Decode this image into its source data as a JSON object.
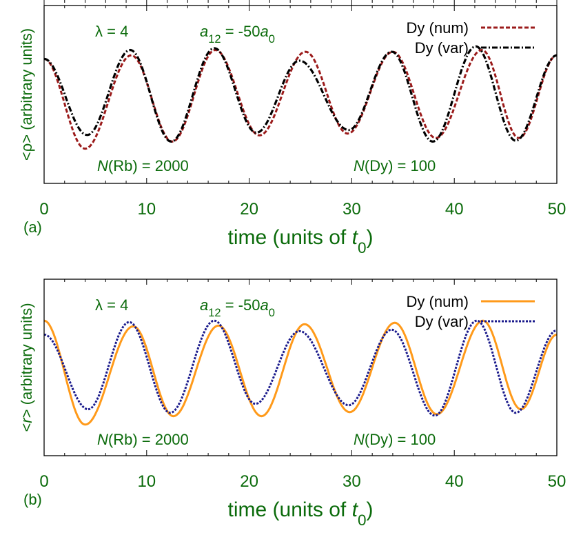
{
  "chart_data": [
    {
      "type": "line",
      "panel_label": "(a)",
      "xlabel": "time (units of t0)",
      "xlabel_parts": {
        "main": "time (units of ",
        "italic": "t",
        "sub": "0",
        "close": ")"
      },
      "ylabel": "<ρ> (arbitrary units)",
      "xlim": [
        0,
        50
      ],
      "xticks": [
        "0",
        "10",
        "20",
        "30",
        "40",
        "50"
      ],
      "ylim": [
        0,
        1
      ],
      "grid": false,
      "legend": "top-right",
      "annotations": {
        "lambda": "λ = 4",
        "a12": {
          "a": "a",
          "sub": "12",
          "mid": " = -50",
          "a0": "a",
          "sub0": "0"
        },
        "nrb": {
          "n": "N",
          "rest": "(Rb) = 2000"
        },
        "ndy": {
          "n": "N",
          "rest": "(Dy) = 100"
        }
      },
      "series": [
        {
          "name": "Dy (num)",
          "color": "#9b1b1b",
          "style": "dashed",
          "key_points": [
            [
              0,
              0.7
            ],
            [
              4,
              0.195
            ],
            [
              8.5,
              0.72
            ],
            [
              12.5,
              0.235
            ],
            [
              16.7,
              0.75
            ],
            [
              21,
              0.27
            ],
            [
              25.5,
              0.74
            ],
            [
              29.6,
              0.28
            ],
            [
              34,
              0.74
            ],
            [
              38.2,
              0.255
            ],
            [
              42.7,
              0.75
            ],
            [
              46.3,
              0.255
            ],
            [
              50,
              0.72
            ]
          ]
        },
        {
          "name": "Dy (var)",
          "color": "#000000",
          "style": "dash-dot",
          "key_points": [
            [
              0,
              0.7
            ],
            [
              4.2,
              0.272
            ],
            [
              8.4,
              0.75
            ],
            [
              12.4,
              0.235
            ],
            [
              16.6,
              0.76
            ],
            [
              20.7,
              0.285
            ],
            [
              24.9,
              0.69
            ],
            [
              29.7,
              0.3
            ],
            [
              33.9,
              0.74
            ],
            [
              37.9,
              0.235
            ],
            [
              42.1,
              0.77
            ],
            [
              46,
              0.24
            ],
            [
              50,
              0.72
            ]
          ]
        }
      ]
    },
    {
      "type": "line",
      "panel_label": "(b)",
      "xlabel": "time (units of t0)",
      "xlabel_parts": {
        "main": "time (units of ",
        "italic": "t",
        "sub": "0",
        "close": ")"
      },
      "ylabel": "<r> (arbitrary units)",
      "ylabel_parts": {
        "open": "<",
        "italic": "r",
        "close": ">",
        "rest": "  (arbitrary units)"
      },
      "xlim": [
        0,
        50
      ],
      "xticks": [
        "0",
        "10",
        "20",
        "30",
        "40",
        "50"
      ],
      "ylim": [
        0,
        1
      ],
      "grid": false,
      "legend": "top-right",
      "annotations": {
        "lambda": "λ = 4",
        "a12": {
          "a": "a",
          "sub": "12",
          "mid": " = -50",
          "a0": "a",
          "sub0": "0"
        },
        "nrb": {
          "n": "N",
          "rest": "(Rb) = 2000"
        },
        "ndy": {
          "n": "N",
          "rest": "(Dy) = 100"
        }
      },
      "series": [
        {
          "name": "Dy (num)",
          "color": "#ff9a1a",
          "style": "solid",
          "key_points": [
            [
              0,
              0.765
            ],
            [
              4,
              0.176
            ],
            [
              8.7,
              0.733
            ],
            [
              12.6,
              0.224
            ],
            [
              17,
              0.737
            ],
            [
              21.2,
              0.224
            ],
            [
              25.4,
              0.745
            ],
            [
              29.8,
              0.247
            ],
            [
              34.2,
              0.753
            ],
            [
              38.3,
              0.235
            ],
            [
              42.8,
              0.765
            ],
            [
              46.5,
              0.263
            ],
            [
              50,
              0.686
            ]
          ]
        },
        {
          "name": "Dy (var)",
          "color": "#1a1a8c",
          "style": "dotted",
          "key_points": [
            [
              0,
              0.686
            ],
            [
              4.3,
              0.263
            ],
            [
              8.3,
              0.757
            ],
            [
              12.3,
              0.243
            ],
            [
              16.6,
              0.765
            ],
            [
              20.6,
              0.294
            ],
            [
              24.9,
              0.706
            ],
            [
              29.7,
              0.286
            ],
            [
              33.9,
              0.714
            ],
            [
              38.1,
              0.227
            ],
            [
              42.2,
              0.765
            ],
            [
              46,
              0.243
            ],
            [
              50,
              0.71
            ]
          ]
        }
      ]
    }
  ]
}
